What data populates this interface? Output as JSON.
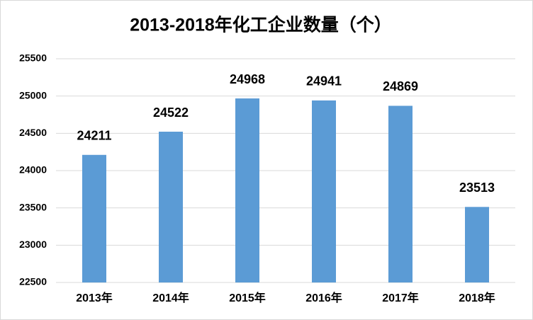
{
  "chart_data": {
    "type": "bar",
    "title": "2013-2018年化工企业数量（个）",
    "categories": [
      "2013年",
      "2014年",
      "2015年",
      "2016年",
      "2017年",
      "2018年"
    ],
    "values": [
      24211,
      24522,
      24968,
      24941,
      24869,
      23513
    ],
    "color": "#5b9bd5",
    "ylim": [
      22500,
      25500
    ],
    "yticks": [
      22500,
      23000,
      23500,
      24000,
      24500,
      25000,
      25500
    ],
    "grid": true
  }
}
